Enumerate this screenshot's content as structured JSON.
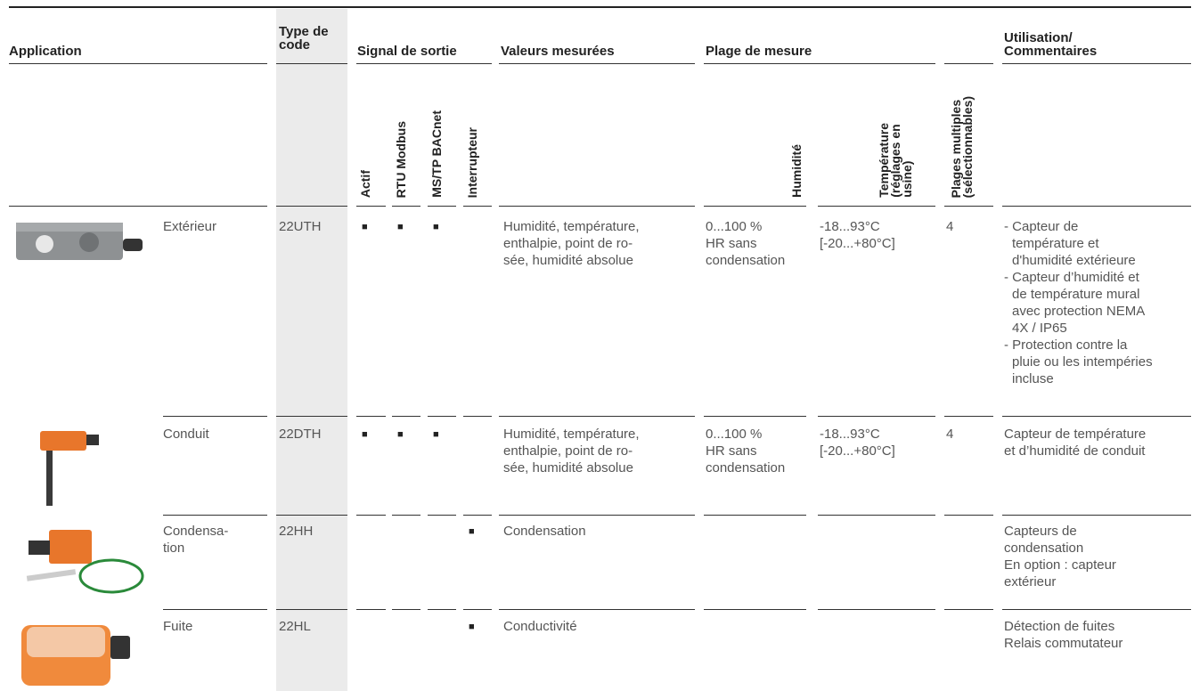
{
  "header": {
    "application": "Application",
    "type_code": "Type de\ncode",
    "signal": "Signal de sortie",
    "measured": "Valeurs mesurées",
    "range": "Plage de mesure",
    "usage": "Utilisation/\nCommentaires"
  },
  "subheaders": {
    "actif": "Actif",
    "rtu": "RTU Modbus",
    "bacnet": "MS/TP BACnet",
    "switch": "Interrupteur",
    "humidity": "Humidité",
    "temperature": "Température\n(réglages en\nusine)",
    "ranges": "Plages multiples\n(sélectionnables)"
  },
  "rows": [
    {
      "application": "Extérieur",
      "code": "22UTH",
      "actif": "■",
      "rtu": "■",
      "bacnet": "■",
      "switch": null,
      "measured": "Humidité, température,\nenthalpie, point de ro-\nsée, humidité absolue",
      "humidity": "0...100 %\nHR sans\ncondensation",
      "temperature": "-18...93°C\n[-20...+80°C]",
      "ranges": "4",
      "usage": [
        "- Capteur de\ntempérature et\nd'humidité extérieure",
        "- Capteur d’humidité et\nde température mural\navec protection NEMA\n4X / IP65",
        "- Protection contre la\npluie ou les intempéries\nincluse"
      ]
    },
    {
      "application": "Conduit",
      "code": "22DTH",
      "actif": "■",
      "rtu": "■",
      "bacnet": "■",
      "switch": null,
      "measured": "Humidité, température,\nenthalpie, point de ro-\nsée, humidité absolue",
      "humidity": "0...100 %\nHR sans\ncondensation",
      "temperature": "-18...93°C\n[-20...+80°C]",
      "ranges": "4",
      "usage": [
        "Capteur de température\net d’humidité de conduit"
      ]
    },
    {
      "application": "Condensa-\ntion",
      "code": "22HH",
      "actif": null,
      "rtu": null,
      "bacnet": null,
      "switch": "■",
      "measured": "Condensation",
      "humidity": null,
      "temperature": null,
      "ranges": null,
      "usage": [
        "Capteurs de\ncondensation\nEn option : capteur\nextérieur"
      ]
    },
    {
      "application": "Fuite",
      "code": "22HL",
      "actif": null,
      "rtu": null,
      "bacnet": null,
      "switch": "■",
      "measured": "Conductivité",
      "humidity": null,
      "temperature": null,
      "ranges": null,
      "usage": [
        "Détection de fuites\nRelais commutateur"
      ]
    }
  ]
}
